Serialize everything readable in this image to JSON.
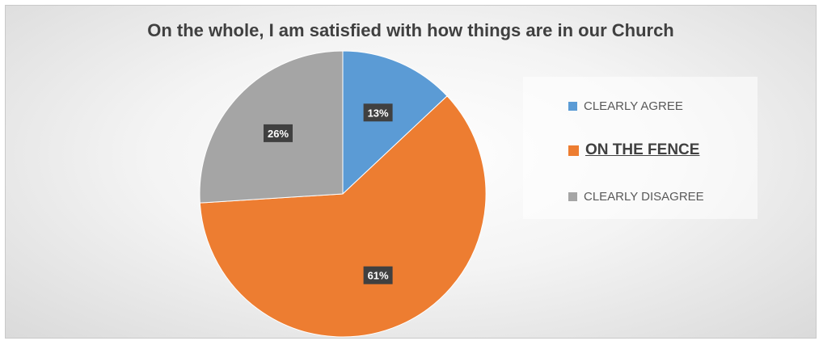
{
  "chart_data": {
    "type": "pie",
    "title": "On the whole, I am satisfied with how things are in our Church",
    "slices": [
      {
        "label": "CLEARLY AGREE",
        "value": 13,
        "display": "13%",
        "color": "#5B9BD5",
        "emphasized": false
      },
      {
        "label": "ON THE FENCE",
        "value": 61,
        "display": "61%",
        "color": "#ED7D31",
        "emphasized": true
      },
      {
        "label": "CLEARLY DISAGREE",
        "value": 26,
        "display": "26%",
        "color": "#A5A5A5",
        "emphasized": false
      }
    ],
    "legend_position": "right"
  }
}
